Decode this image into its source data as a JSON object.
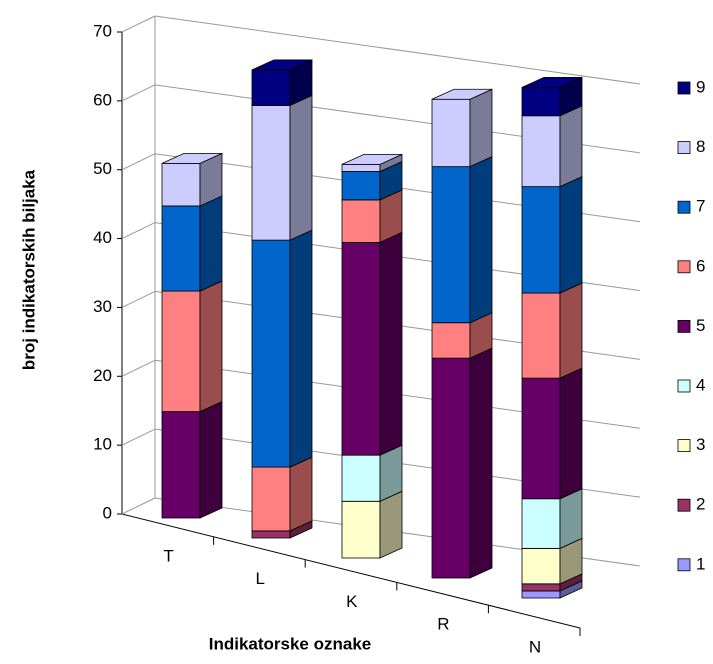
{
  "chart_data": {
    "type": "bar3d_stacked",
    "x_label": "Indikatorske oznake",
    "y_label": "broj indikatorskih biljaka",
    "categories": [
      "T",
      "L",
      "K",
      "R",
      "N"
    ],
    "ylim": [
      0,
      70
    ],
    "yticks": [
      0,
      10,
      20,
      30,
      40,
      50,
      60,
      70
    ],
    "grid": true,
    "legend": "right",
    "series": [
      {
        "name": "1",
        "color": "#9999ff",
        "values": [
          0,
          0,
          0,
          0,
          1
        ]
      },
      {
        "name": "2",
        "color": "#993366",
        "values": [
          0,
          1,
          0,
          0,
          1
        ]
      },
      {
        "name": "3",
        "color": "#ffffcc",
        "values": [
          0,
          0,
          8,
          0,
          5
        ]
      },
      {
        "name": "4",
        "color": "#ccffff",
        "values": [
          0,
          0,
          6.5,
          0,
          7
        ]
      },
      {
        "name": "5",
        "color": "#660066",
        "values": [
          15,
          0,
          30,
          31,
          17
        ]
      },
      {
        "name": "6",
        "color": "#ff8080",
        "values": [
          17,
          9,
          6,
          5,
          12
        ]
      },
      {
        "name": "7",
        "color": "#0066cc",
        "values": [
          12,
          32,
          4,
          22,
          15
        ]
      },
      {
        "name": "8",
        "color": "#ccccff",
        "values": [
          6,
          19,
          1,
          9.5,
          10
        ]
      },
      {
        "name": "9",
        "color": "#000080",
        "values": [
          0,
          5,
          0,
          0,
          4
        ]
      }
    ]
  }
}
